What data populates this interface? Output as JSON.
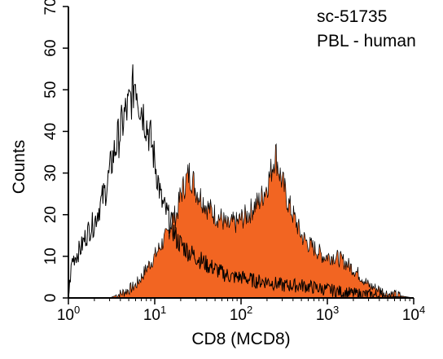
{
  "chart_data": {
    "type": "area",
    "title": "",
    "annotations": [
      "sc-51735",
      "PBL - human"
    ],
    "xlabel": "CD8 (MCD8)",
    "ylabel": "Counts",
    "x_scale": "log",
    "xlim": [
      1,
      10000
    ],
    "ylim": [
      0,
      70
    ],
    "x_ticks": [
      {
        "value": 1,
        "base": "10",
        "exp": "0"
      },
      {
        "value": 10,
        "base": "10",
        "exp": "1"
      },
      {
        "value": 100,
        "base": "10",
        "exp": "2"
      },
      {
        "value": 1000,
        "base": "10",
        "exp": "3"
      },
      {
        "value": 10000,
        "base": "10",
        "exp": "4"
      }
    ],
    "y_ticks": [
      {
        "value": 0,
        "label": "0"
      },
      {
        "value": 10,
        "label": "10"
      },
      {
        "value": 20,
        "label": "20"
      },
      {
        "value": 30,
        "label": "30"
      },
      {
        "value": 40,
        "label": "40"
      },
      {
        "value": 50,
        "label": "50"
      },
      {
        "value": 60,
        "label": "60"
      },
      {
        "value": 70,
        "label": "70"
      }
    ],
    "series": [
      {
        "style": "outline",
        "color": "#000000",
        "x": [
          1.0,
          1.1,
          1.2,
          1.4,
          1.6,
          1.8,
          2.0,
          2.2,
          2.5,
          2.8,
          3.2,
          3.6,
          4.0,
          4.5,
          5.0,
          5.6,
          6.0,
          6.5,
          7.0,
          7.5,
          8.0,
          9.0,
          10,
          11,
          12,
          14,
          16,
          18,
          20,
          25,
          30,
          40,
          50,
          60,
          80,
          100,
          150,
          200,
          300,
          500,
          1000,
          2000,
          10000
        ],
        "y": [
          0,
          9,
          10,
          12,
          15,
          17,
          18,
          21,
          24,
          27,
          33,
          37,
          40,
          44,
          46,
          50,
          53,
          48,
          46,
          44,
          42,
          38,
          33,
          28,
          23,
          20,
          17,
          14,
          13,
          11,
          10,
          8,
          7,
          6,
          5,
          5,
          4,
          4,
          3,
          3,
          2,
          1,
          0
        ]
      },
      {
        "style": "filled",
        "color": "#F26522",
        "x": [
          1.0,
          2.0,
          3.0,
          4.0,
          5.0,
          6.0,
          7.0,
          8.0,
          10,
          12,
          14,
          16,
          18,
          20,
          22,
          25,
          28,
          30,
          35,
          40,
          50,
          60,
          70,
          80,
          90,
          100,
          120,
          140,
          160,
          180,
          200,
          220,
          250,
          280,
          300,
          350,
          400,
          500,
          600,
          700,
          800,
          900,
          1000,
          1200,
          1500,
          2000,
          2500,
          3000,
          4000,
          5000,
          10000
        ],
        "y": [
          0,
          0,
          0,
          1,
          2,
          3,
          5,
          7,
          10,
          13,
          15,
          19,
          20,
          25,
          27,
          30,
          28,
          26,
          24,
          22,
          20,
          19,
          17,
          18,
          18,
          19,
          20,
          22,
          23,
          25,
          27,
          30,
          35,
          30,
          28,
          23,
          20,
          15,
          13,
          12,
          11,
          10,
          10,
          10,
          9,
          7,
          5,
          3,
          2,
          1,
          0
        ]
      }
    ],
    "grid": false,
    "legend": "none"
  }
}
